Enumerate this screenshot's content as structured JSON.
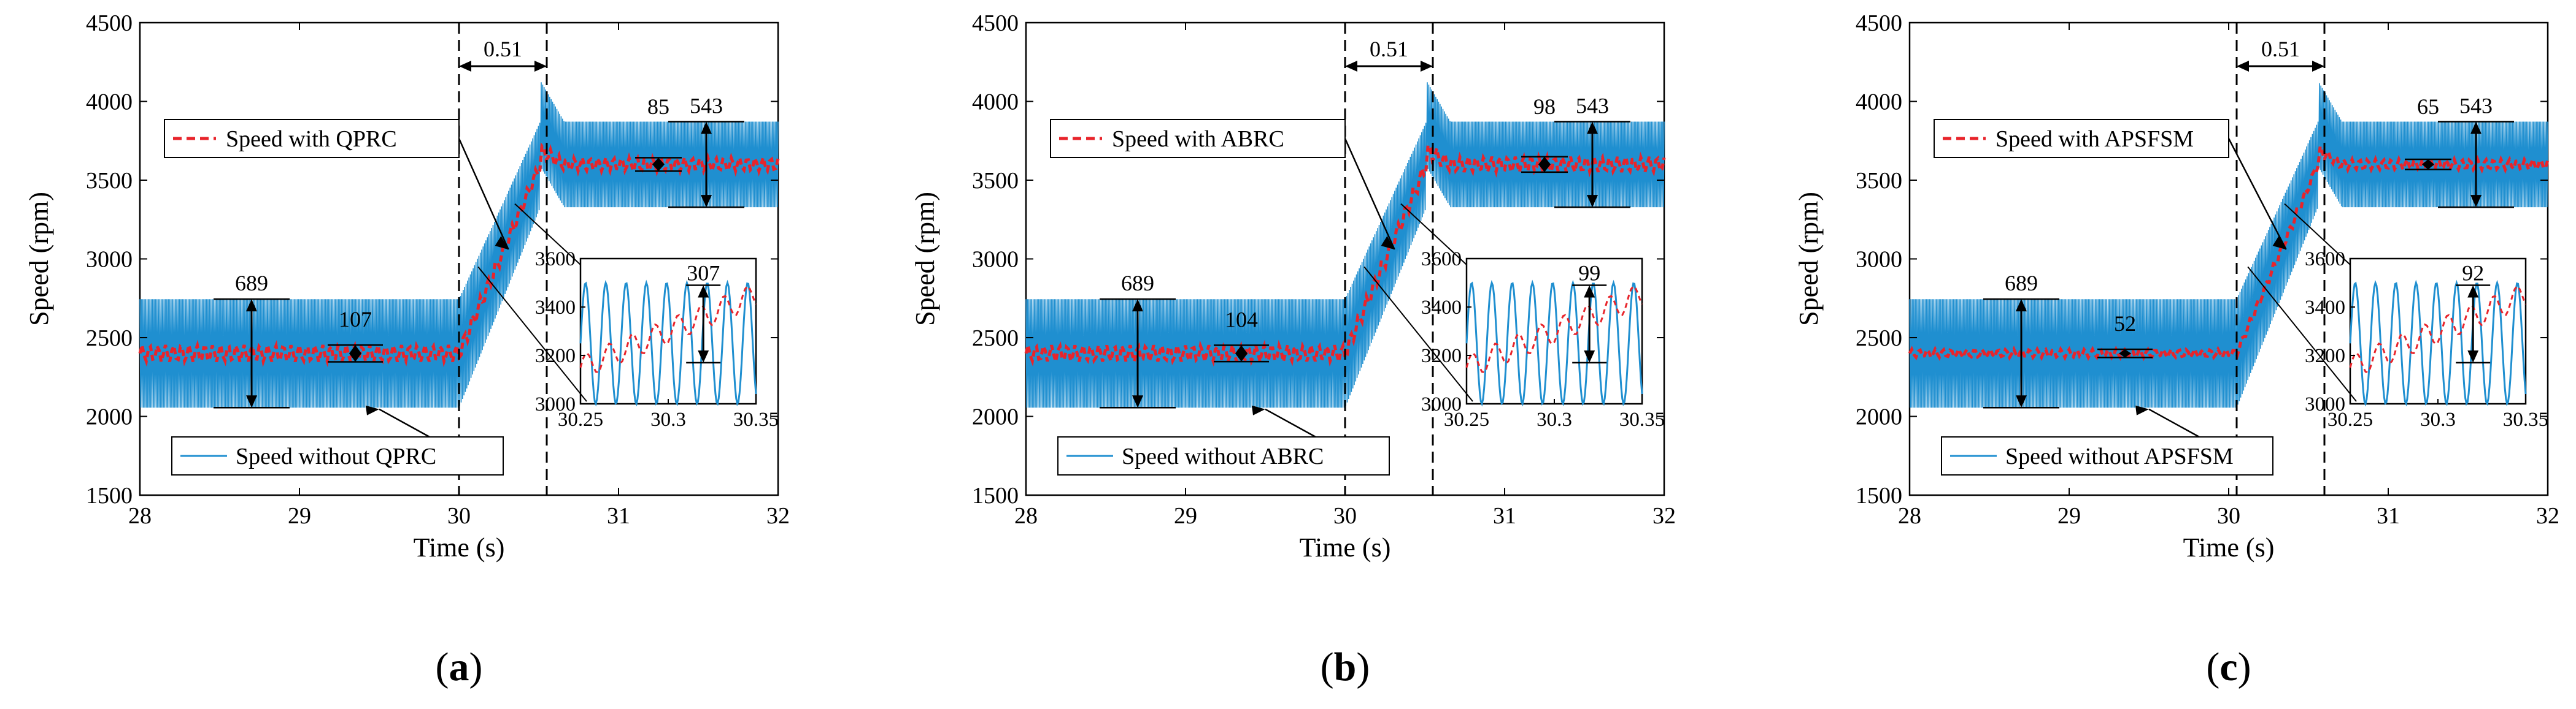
{
  "chart_data": [
    {
      "type": "line",
      "panel_label": "(a)",
      "label_open": "(",
      "label_letter": "a",
      "label_close": ")",
      "xlabel": "Time (s)",
      "ylabel": "Speed (rpm)",
      "xlim": [
        28,
        32
      ],
      "ylim": [
        1500,
        4500
      ],
      "x_ticks": [
        "28",
        "29",
        "30",
        "31",
        "32"
      ],
      "y_ticks": [
        "1500",
        "2000",
        "2500",
        "3000",
        "3500",
        "4000",
        "4500"
      ],
      "grid": false,
      "speed_low": 2400,
      "speed_high": 3600,
      "ramp_start": 30.0,
      "ramp_end": 30.51,
      "dashed_lines_x": [
        30.0,
        30.55
      ],
      "series": [
        {
          "name": "Speed without QPRC",
          "color": "#1f8fd0",
          "style": "solid",
          "ripple_low_pp": 689,
          "ripple_high_pp": 543
        },
        {
          "name": "Speed with QPRC",
          "color": "#e8242b",
          "style": "dashed",
          "ripple_low_pp": 107,
          "ripple_high_pp": 85
        }
      ],
      "annotations": {
        "transition_time": "0.51",
        "without_low": "689",
        "with_low": "107",
        "with_high": "85",
        "without_high": "543",
        "inset_value": "307"
      },
      "inset": {
        "xlim": [
          30.25,
          30.35
        ],
        "ylim": [
          3000,
          3600
        ],
        "x_ticks": [
          "30.25",
          "30.3",
          "30.35"
        ],
        "y_ticks": [
          "3000",
          "3200",
          "3400",
          "3600"
        ]
      }
    },
    {
      "type": "line",
      "panel_label": "(b)",
      "label_open": "(",
      "label_letter": "b",
      "label_close": ")",
      "xlabel": "Time (s)",
      "ylabel": "Speed (rpm)",
      "xlim": [
        28,
        32
      ],
      "ylim": [
        1500,
        4500
      ],
      "x_ticks": [
        "28",
        "29",
        "30",
        "31",
        "32"
      ],
      "y_ticks": [
        "1500",
        "2000",
        "2500",
        "3000",
        "3500",
        "4000",
        "4500"
      ],
      "grid": false,
      "speed_low": 2400,
      "speed_high": 3600,
      "ramp_start": 30.0,
      "ramp_end": 30.51,
      "dashed_lines_x": [
        30.0,
        30.55
      ],
      "series": [
        {
          "name": "Speed without ABRC",
          "color": "#1f8fd0",
          "style": "solid",
          "ripple_low_pp": 689,
          "ripple_high_pp": 543
        },
        {
          "name": "Speed with ABRC",
          "color": "#e8242b",
          "style": "dashed",
          "ripple_low_pp": 104,
          "ripple_high_pp": 98
        }
      ],
      "annotations": {
        "transition_time": "0.51",
        "without_low": "689",
        "with_low": "104",
        "with_high": "98",
        "without_high": "543",
        "inset_value": "99"
      },
      "inset": {
        "xlim": [
          30.25,
          30.35
        ],
        "ylim": [
          3000,
          3600
        ],
        "x_ticks": [
          "30.25",
          "30.3",
          "30.35"
        ],
        "y_ticks": [
          "3000",
          "3200",
          "3400",
          "3600"
        ]
      }
    },
    {
      "type": "line",
      "panel_label": "(c)",
      "label_open": "(",
      "label_letter": "c",
      "label_close": ")",
      "xlabel": "Time (s)",
      "ylabel": "Speed (rpm)",
      "xlim": [
        28,
        32
      ],
      "ylim": [
        1500,
        4500
      ],
      "x_ticks": [
        "28",
        "29",
        "30",
        "31",
        "32"
      ],
      "y_ticks": [
        "1500",
        "2000",
        "2500",
        "3000",
        "3500",
        "4000",
        "4500"
      ],
      "grid": false,
      "speed_low": 2400,
      "speed_high": 3600,
      "ramp_start": 30.05,
      "ramp_end": 30.56,
      "dashed_lines_x": [
        30.05,
        30.6
      ],
      "series": [
        {
          "name": "Speed without APSFSM",
          "color": "#1f8fd0",
          "style": "solid",
          "ripple_low_pp": 689,
          "ripple_high_pp": 543
        },
        {
          "name": "Speed with APSFSM",
          "color": "#e8242b",
          "style": "dashed",
          "ripple_low_pp": 52,
          "ripple_high_pp": 65
        }
      ],
      "annotations": {
        "transition_time": "0.51",
        "without_low": "689",
        "with_low": "52",
        "with_high": "65",
        "without_high": "543",
        "inset_value": "92"
      },
      "inset": {
        "xlim": [
          30.25,
          30.35
        ],
        "ylim": [
          3000,
          3600
        ],
        "x_ticks": [
          "30.25",
          "30.3",
          "30.35"
        ],
        "y_ticks": [
          "3000",
          "3200",
          "3400",
          "3600"
        ]
      }
    }
  ]
}
